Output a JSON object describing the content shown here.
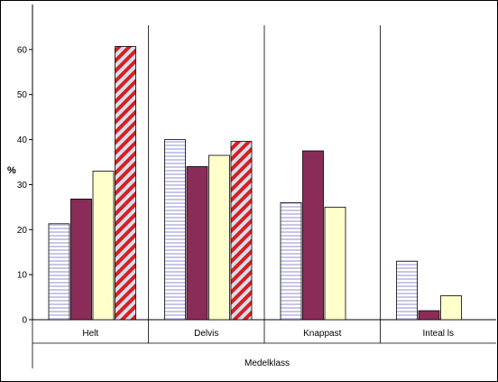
{
  "chart_data": {
    "type": "bar",
    "categories": [
      "Helt",
      "Delvis",
      "Knappast",
      "Inteal ls"
    ],
    "series": [
      {
        "values": [
          21.3,
          40.0,
          26.0,
          13.0
        ],
        "color": "#c8c8e6",
        "pattern": "horizontal-stripes"
      },
      {
        "values": [
          26.8,
          34.0,
          37.5,
          2.0
        ],
        "color": "#8b2b58",
        "pattern": "solid"
      },
      {
        "values": [
          33.0,
          36.5,
          25.0,
          5.3
        ],
        "color": "#ffffcc",
        "pattern": "solid"
      },
      {
        "values": [
          60.7,
          39.6,
          null,
          null
        ],
        "color": "#e31a1c",
        "pattern": "diagonal-stripes-red-lightblue"
      }
    ],
    "ylabel": "%",
    "xlabel": "Medelklass",
    "ylim": [
      0,
      70
    ],
    "yticks": [
      0,
      10,
      20,
      30,
      40,
      50,
      60
    ],
    "grid": false,
    "legend": "none"
  }
}
